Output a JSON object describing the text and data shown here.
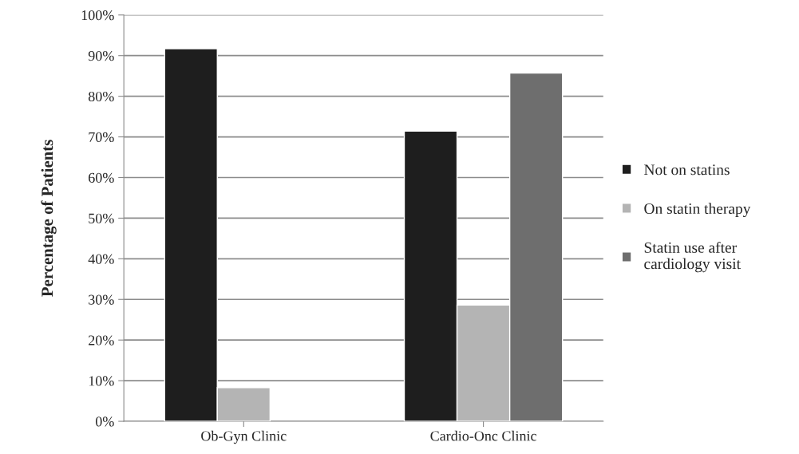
{
  "chart_data": {
    "type": "bar",
    "ylabel": "Percentage of Patients",
    "categories": [
      "Ob-Gyn Clinic",
      "Cardio-Onc Clinic"
    ],
    "series": [
      {
        "name": "Not on statins",
        "color": "#1e1e1e",
        "values": [
          91.7,
          71.4
        ]
      },
      {
        "name": "On statin therapy",
        "color": "#b4b4b4",
        "values": [
          8.3,
          28.6
        ]
      },
      {
        "name": "Statin use after cardiology visit",
        "color": "#6e6e6e",
        "values": [
          null,
          85.7
        ]
      }
    ],
    "ylim": [
      0,
      100
    ],
    "yticks": [
      {
        "value": 0,
        "label": "0%"
      },
      {
        "value": 10,
        "label": "10%"
      },
      {
        "value": 20,
        "label": "20%"
      },
      {
        "value": 30,
        "label": "30%"
      },
      {
        "value": 40,
        "label": "40%"
      },
      {
        "value": 50,
        "label": "50%"
      },
      {
        "value": 60,
        "label": "60%"
      },
      {
        "value": 70,
        "label": "70%"
      },
      {
        "value": 80,
        "label": "80%"
      },
      {
        "value": 90,
        "label": "90%"
      },
      {
        "value": 100,
        "label": "100%"
      }
    ],
    "grid": "y",
    "legend": "right"
  }
}
